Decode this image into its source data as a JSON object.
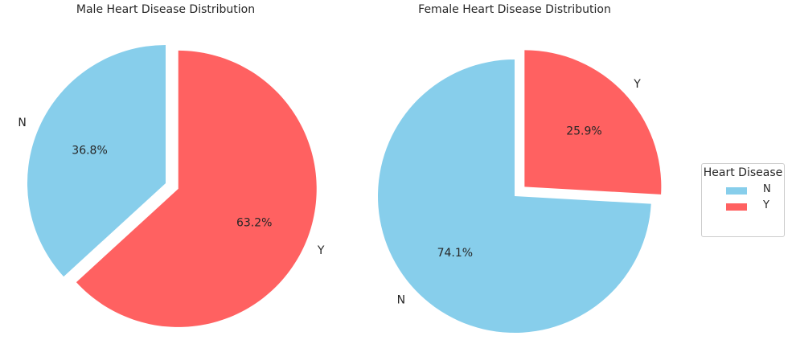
{
  "chart_data": [
    {
      "type": "pie",
      "title": "Male Heart Disease Distribution",
      "start_angle": 90,
      "explode": [
        0,
        0.1
      ],
      "slices": [
        {
          "label": "N",
          "value": 36.8,
          "pct_label": "36.8%",
          "color": "#87CEEB"
        },
        {
          "label": "Y",
          "value": 63.2,
          "pct_label": "63.2%",
          "color": "#FF6161"
        }
      ]
    },
    {
      "type": "pie",
      "title": "Female Heart Disease Distribution",
      "start_angle": 90,
      "explode": [
        0,
        0.1
      ],
      "slices": [
        {
          "label": "N",
          "value": 74.1,
          "pct_label": "74.1%",
          "color": "#87CEEB"
        },
        {
          "label": "Y",
          "value": 25.9,
          "pct_label": "25.9%",
          "color": "#FF6161"
        }
      ]
    }
  ],
  "legend": {
    "title": "Heart Disease",
    "items": [
      {
        "label": "N",
        "color": "#87CEEB"
      },
      {
        "label": "Y",
        "color": "#FF6161"
      }
    ]
  }
}
